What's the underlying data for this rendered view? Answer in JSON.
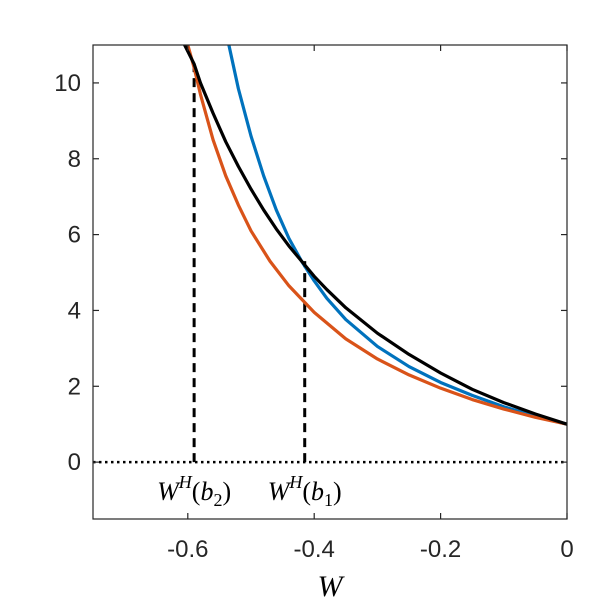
{
  "chart_data": {
    "type": "line",
    "title": "",
    "xlabel": "W",
    "ylabel": "",
    "xlim": [
      -0.75,
      0
    ],
    "ylim": [
      -1.5,
      11
    ],
    "xticks": [
      -0.6,
      -0.4,
      -0.2,
      0
    ],
    "xtick_labels": [
      "-0.6",
      "-0.4",
      "-0.2",
      "0"
    ],
    "yticks": [
      0,
      2,
      4,
      6,
      8,
      10
    ],
    "ytick_labels": [
      "0",
      "2",
      "4",
      "6",
      "8",
      "10"
    ],
    "grid": false,
    "series": [
      {
        "color": "#0072BD",
        "x": [
          -0.535,
          -0.52,
          -0.5,
          -0.48,
          -0.46,
          -0.44,
          -0.42,
          -0.4,
          -0.38,
          -0.35,
          -0.3,
          -0.25,
          -0.2,
          -0.15,
          -0.1,
          -0.05,
          0
        ],
        "y": [
          11.0,
          9.85,
          8.6,
          7.55,
          6.65,
          5.9,
          5.3,
          4.78,
          4.32,
          3.76,
          3.05,
          2.52,
          2.1,
          1.76,
          1.46,
          1.21,
          1.0
        ]
      },
      {
        "color": "#D95319",
        "x": [
          -0.6,
          -0.59,
          -0.58,
          -0.56,
          -0.54,
          -0.52,
          -0.5,
          -0.47,
          -0.44,
          -0.4,
          -0.35,
          -0.3,
          -0.25,
          -0.2,
          -0.15,
          -0.1,
          -0.05,
          0
        ],
        "y": [
          11.0,
          10.4,
          9.7,
          8.5,
          7.55,
          6.78,
          6.1,
          5.3,
          4.65,
          3.95,
          3.25,
          2.72,
          2.3,
          1.95,
          1.65,
          1.4,
          1.18,
          1.0
        ]
      },
      {
        "color": "#000000",
        "x": [
          -0.605,
          -0.59,
          -0.58,
          -0.56,
          -0.54,
          -0.52,
          -0.5,
          -0.48,
          -0.46,
          -0.44,
          -0.42,
          -0.4,
          -0.38,
          -0.35,
          -0.3,
          -0.25,
          -0.2,
          -0.15,
          -0.1,
          -0.05,
          0
        ],
        "y": [
          11.0,
          10.5,
          10.0,
          9.2,
          8.45,
          7.8,
          7.2,
          6.65,
          6.15,
          5.7,
          5.3,
          4.9,
          4.55,
          4.07,
          3.4,
          2.84,
          2.35,
          1.92,
          1.57,
          1.27,
          1.0
        ]
      }
    ],
    "reference_lines": [
      {
        "orientation": "vertical",
        "x": -0.59,
        "y_from": 0,
        "y_to": 10.5,
        "style": "dashed",
        "color": "#000000"
      },
      {
        "orientation": "vertical",
        "x": -0.415,
        "y_from": 0,
        "y_to": 5.3,
        "style": "dashed",
        "color": "#000000"
      },
      {
        "orientation": "horizontal",
        "y": 0,
        "style": "dotted",
        "color": "#000000"
      }
    ],
    "annotations": [
      {
        "x": -0.59,
        "base": "W",
        "sup": "H",
        "arg": "b",
        "sub": "2"
      },
      {
        "x": -0.415,
        "base": "W",
        "sup": "H",
        "arg": "b",
        "sub": "1"
      }
    ]
  }
}
